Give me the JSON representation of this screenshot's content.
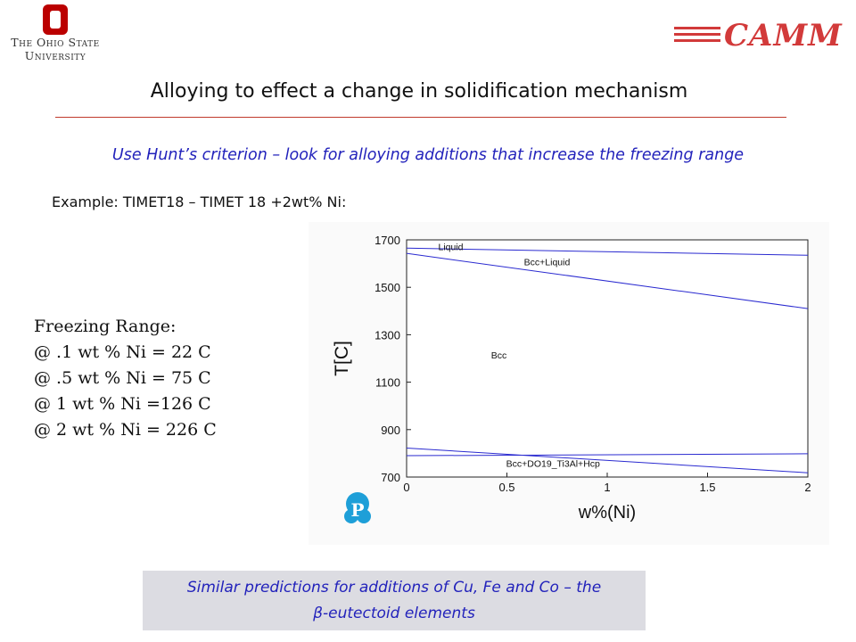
{
  "header": {
    "osu_line1": "The Ohio State",
    "osu_line2": "University",
    "osu_block_letter": "O",
    "camm_label": "CAMM"
  },
  "slide": {
    "title": "Alloying to effect a change in solidification mechanism",
    "subtitle": "Use Hunt’s criterion – look for alloying additions that increase the freezing range",
    "example": "Example: TIMET18 – TIMET 18 +2wt% Ni:",
    "freezing_range": [
      "Freezing Range:",
      "@ .1 wt % Ni = 22 C",
      "@ .5 wt % Ni = 75 C",
      "@ 1 wt % Ni =126 C",
      "@ 2 wt % Ni = 226 C"
    ],
    "bottom_line1": "Similar predictions for additions of Cu, Fe and Co – the",
    "bottom_line2": "β-eutectoid elements",
    "pandat_letter": "P"
  },
  "colors": {
    "accent_red": "#c0392b",
    "camm_red": "#d23a3a",
    "text_blue": "#2222bb",
    "phase_line": "#2a2ad0"
  },
  "chart_data": {
    "type": "line",
    "xlabel": "w%(Ni)",
    "ylabel": "T[C]",
    "xlim": [
      0,
      2
    ],
    "ylim": [
      700,
      1700
    ],
    "xticks": [
      0,
      0.5,
      1,
      1.5,
      2
    ],
    "xtick_labels": [
      "0",
      "0.5",
      "1",
      "1.5",
      "2"
    ],
    "yticks": [
      700,
      900,
      1100,
      1300,
      1500,
      1700
    ],
    "ytick_labels": [
      "700",
      "900",
      "1100",
      "1300",
      "1500",
      "1700"
    ],
    "series": [
      {
        "x": [
          0,
          2
        ],
        "y": [
          1665,
          1635
        ]
      },
      {
        "x": [
          0,
          2
        ],
        "y": [
          1643,
          1410
        ]
      },
      {
        "x": [
          0,
          2
        ],
        "y": [
          822,
          718
        ]
      },
      {
        "x": [
          0,
          2
        ],
        "y": [
          790,
          798
        ]
      }
    ],
    "region_labels": [
      {
        "text": "Liquid",
        "x": 0.22,
        "y": 1672
      },
      {
        "text": "Bcc+Liquid",
        "x": 0.7,
        "y": 1608
      },
      {
        "text": "Bcc",
        "x": 0.46,
        "y": 1215
      },
      {
        "text": "Bcc+DO19_Ti3Al+Hcp",
        "x": 0.73,
        "y": 758
      }
    ]
  }
}
